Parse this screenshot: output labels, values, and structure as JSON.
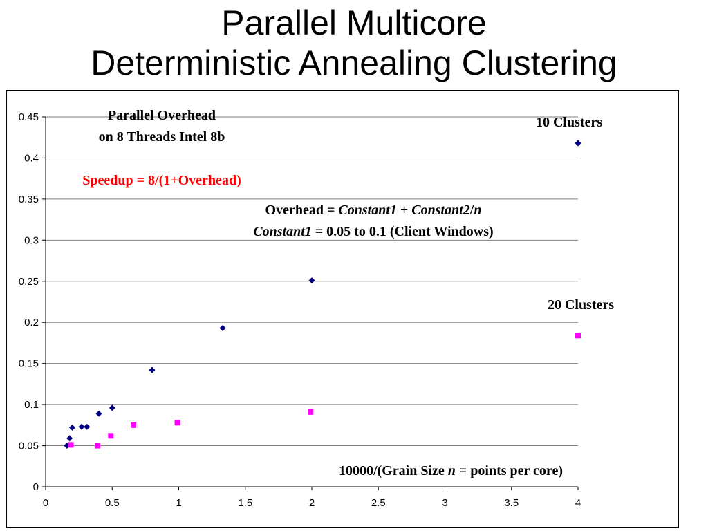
{
  "slide": {
    "title_line1": "Parallel Multicore",
    "title_line2": "Deterministic Annealing Clustering"
  },
  "chart_data": {
    "type": "scatter",
    "title": "",
    "xlabel": "",
    "ylabel": "",
    "xlim": [
      0,
      4
    ],
    "ylim": [
      0,
      0.45
    ],
    "x_ticks": [
      "0",
      "0.5",
      "1",
      "1.5",
      "2",
      "2.5",
      "3",
      "3.5",
      "4"
    ],
    "y_ticks": [
      "0",
      "0.05",
      "0.1",
      "0.15",
      "0.2",
      "0.25",
      "0.3",
      "0.35",
      "0.4",
      "0.45"
    ],
    "grid": "horizontal",
    "series": [
      {
        "name": "10 Clusters",
        "marker": "diamond",
        "color": "#000080",
        "points": [
          [
            0.16,
            0.05
          ],
          [
            0.18,
            0.059
          ],
          [
            0.2,
            0.072
          ],
          [
            0.27,
            0.073
          ],
          [
            0.31,
            0.073
          ],
          [
            0.4,
            0.089
          ],
          [
            0.5,
            0.096
          ],
          [
            0.8,
            0.142
          ],
          [
            1.33,
            0.193
          ],
          [
            2.0,
            0.251
          ],
          [
            4.0,
            0.418
          ]
        ]
      },
      {
        "name": "20 Clusters",
        "marker": "square",
        "color": "#ff00ff",
        "points": [
          [
            0.19,
            0.051
          ],
          [
            0.39,
            0.05
          ],
          [
            0.49,
            0.062
          ],
          [
            0.66,
            0.075
          ],
          [
            0.99,
            0.078
          ],
          [
            1.99,
            0.091
          ],
          [
            4.0,
            0.184
          ]
        ]
      }
    ],
    "annotations": {
      "overhead_title_1": "Parallel Overhead",
      "overhead_title_2": "on 8 Threads Intel 8b",
      "speedup": "Speedup = 8/(1+Overhead)",
      "formula1_a": "Overhead = ",
      "formula1_b": "Constant1",
      "formula1_c": " + ",
      "formula1_d": "Constant2",
      "formula1_e": "/",
      "formula1_f": "n",
      "formula2_a": "Constant1",
      "formula2_b": " = 0.05 to 0.1 (Client Windows)",
      "label_10": "10 Clusters",
      "label_20": "20 Clusters",
      "xaxis_a": "10000/(Grain Size ",
      "xaxis_b": "n",
      "xaxis_c": " = points per core)"
    },
    "colors": {
      "speedup_text": "#ff0000",
      "gridline": "#808080"
    }
  }
}
